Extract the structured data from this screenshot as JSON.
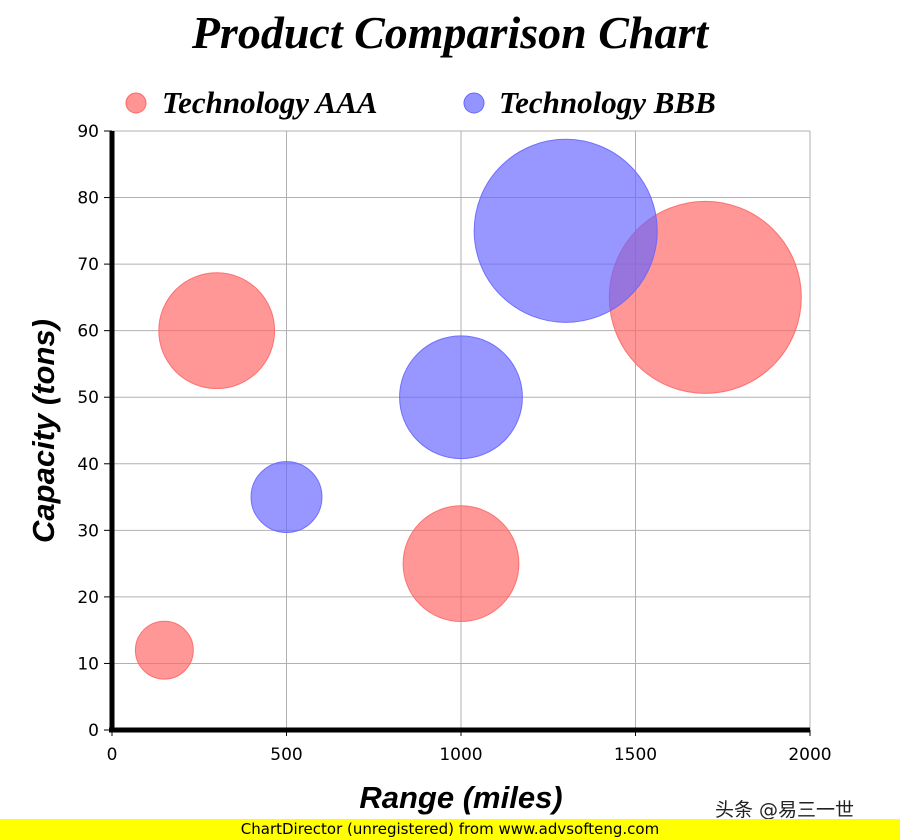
{
  "chart_data": {
    "type": "bubble",
    "title": "Product Comparison Chart",
    "xlabel": "Range (miles)",
    "ylabel": "Capacity (tons)",
    "xlim": [
      0,
      2000
    ],
    "ylim": [
      0,
      90
    ],
    "xticks": [
      0,
      500,
      1000,
      1500,
      2000
    ],
    "yticks": [
      0,
      10,
      20,
      30,
      40,
      50,
      60,
      70,
      80,
      90
    ],
    "grid": true,
    "legend_position": "top",
    "series": [
      {
        "name": "Technology AAA",
        "color": "#ff6666",
        "points": [
          {
            "x": 150,
            "y": 12,
            "size": 1
          },
          {
            "x": 300,
            "y": 60,
            "size": 4
          },
          {
            "x": 1000,
            "y": 25,
            "size": 4
          },
          {
            "x": 1700,
            "y": 65,
            "size": 11
          }
        ]
      },
      {
        "name": "Technology BBB",
        "color": "#6666ff",
        "points": [
          {
            "x": 500,
            "y": 35,
            "size": 1.5
          },
          {
            "x": 1000,
            "y": 50,
            "size": 4.5
          },
          {
            "x": 1300,
            "y": 75,
            "size": 10
          }
        ]
      }
    ]
  },
  "watermark": "头条 @易三一世",
  "footer": "ChartDirector (unregistered) from www.advsofteng.com"
}
